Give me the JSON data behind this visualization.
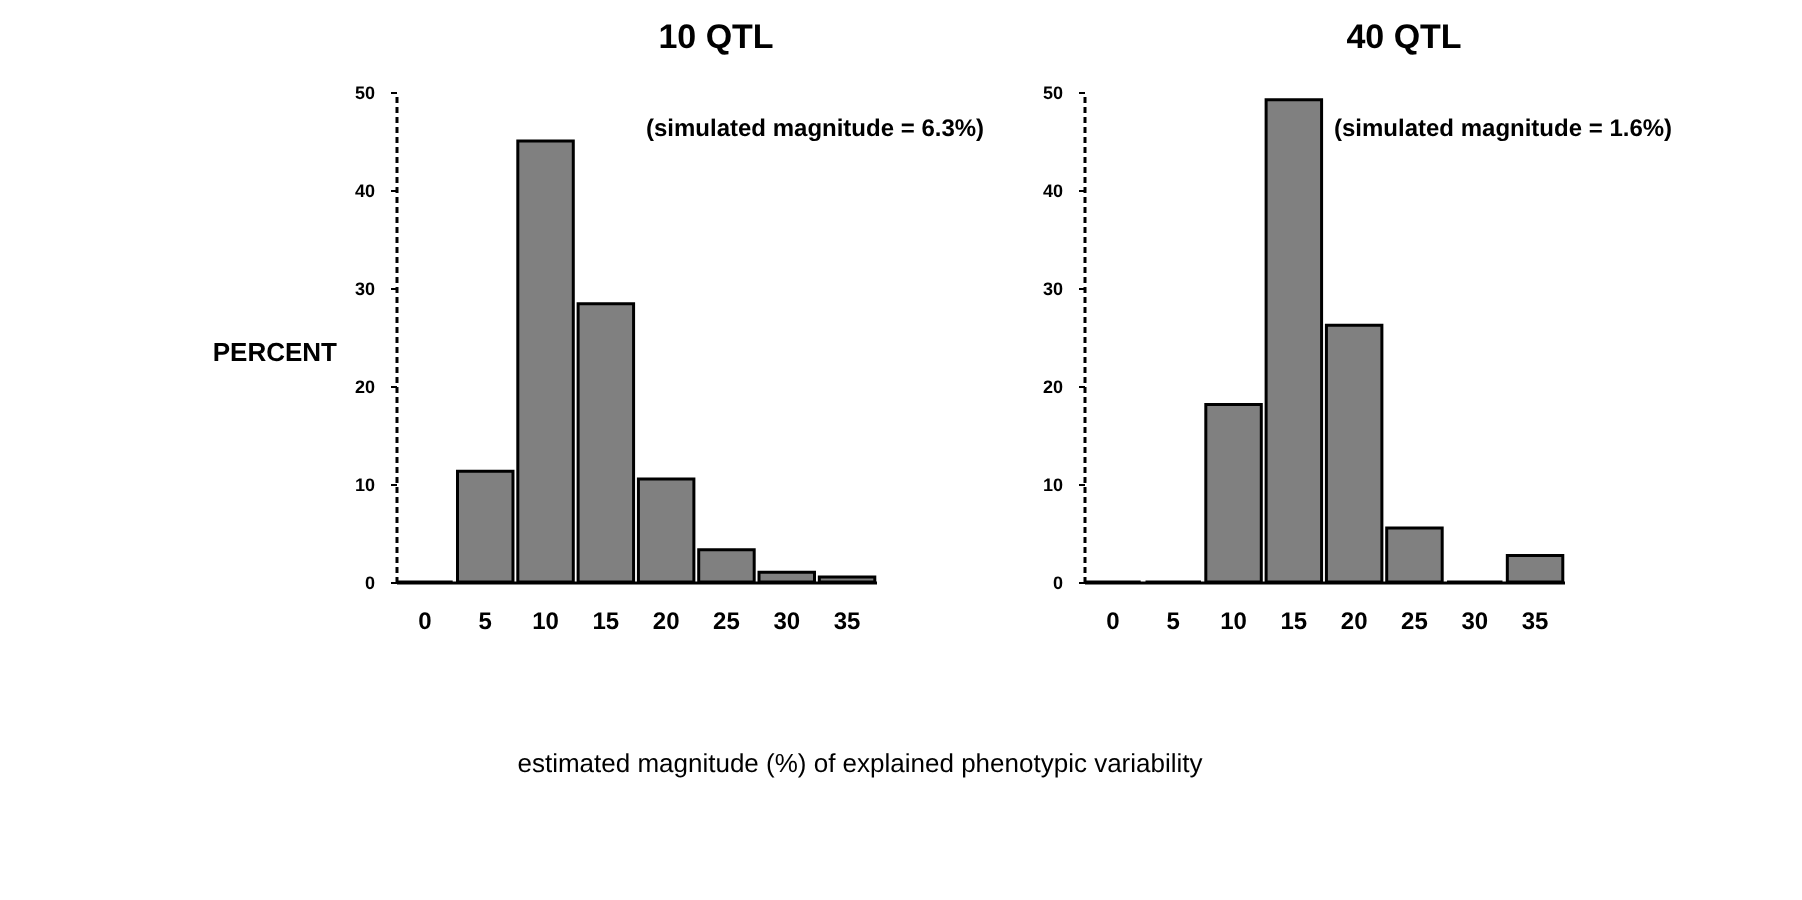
{
  "chart_data": [
    {
      "type": "bar",
      "title": "10 QTL",
      "ylabel": "PERCENT",
      "xlabel": "estimated magnitude (%) of explained phenotypic variability",
      "annotations": [
        "(simulated magnitude = 6.3%)"
      ],
      "categories": [
        "0",
        "5",
        "10",
        "15",
        "20",
        "25",
        "30",
        "35"
      ],
      "values": [
        0,
        11.3,
        45,
        28.4,
        10.5,
        3.3,
        1,
        0.5
      ],
      "color": "#808080",
      "ylim": [
        0,
        50
      ],
      "yticks": [
        0,
        10,
        20,
        30,
        40,
        50
      ],
      "grid": false,
      "legend": false
    },
    {
      "type": "bar",
      "title": "40 QTL",
      "annotations": [
        "(simulated magnitude = 1.6%)"
      ],
      "categories": [
        "0",
        "5",
        "10",
        "15",
        "20",
        "25",
        "30",
        "35"
      ],
      "values": [
        0,
        0,
        18.1,
        49.2,
        26.2,
        5.5,
        0,
        2.7
      ],
      "color": "#808080",
      "ylim": [
        0,
        50
      ],
      "yticks": [
        0,
        10,
        20,
        30,
        40,
        50
      ],
      "grid": false,
      "legend": false
    }
  ]
}
